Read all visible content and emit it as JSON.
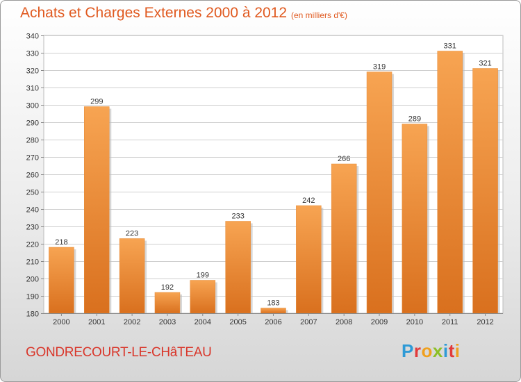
{
  "chart_data": {
    "type": "bar",
    "title": "Achats et Charges Externes 2000 à 2012",
    "subtitle": "(en milliers d'€)",
    "categories": [
      "2000",
      "2001",
      "2002",
      "2003",
      "2004",
      "2005",
      "2006",
      "2007",
      "2008",
      "2009",
      "2010",
      "2011",
      "2012"
    ],
    "values": [
      218,
      299,
      223,
      192,
      199,
      233,
      183,
      242,
      266,
      319,
      289,
      331,
      321
    ],
    "xlabel": "",
    "ylabel": "",
    "ylim": [
      180,
      340
    ],
    "yticks": [
      180,
      190,
      200,
      210,
      220,
      230,
      240,
      250,
      260,
      270,
      280,
      290,
      300,
      310,
      320,
      330,
      340
    ],
    "grid": true,
    "legend": "none",
    "bar_color": "#f0913a"
  },
  "footer": {
    "location": "GONDRECOURT-LE-CHâTEAU",
    "brand": "Proxiti",
    "brand_colors": [
      "#2e9ad6",
      "#e23b3b",
      "#f0a01e",
      "#8cbf26",
      "#2e9ad6",
      "#e23b3b",
      "#f0a01e"
    ]
  }
}
